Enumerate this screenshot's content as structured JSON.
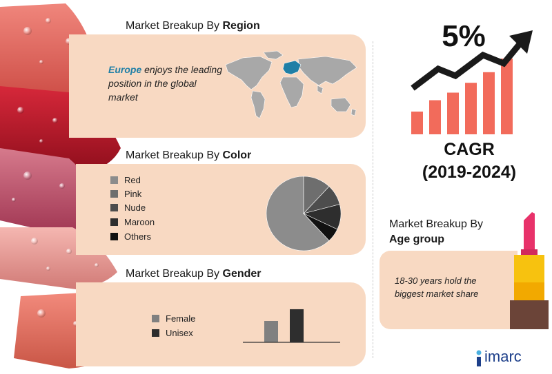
{
  "region": {
    "heading_prefix": "Market Breakup By ",
    "heading_bold": "Region",
    "highlight": "Europe",
    "text": " enjoys the leading position in the global market"
  },
  "color": {
    "heading_prefix": "Market Breakup By ",
    "heading_bold": "Color",
    "legend": [
      {
        "label": "Red",
        "color": "#8c8c8c"
      },
      {
        "label": "Pink",
        "color": "#6e6e6e"
      },
      {
        "label": "Nude",
        "color": "#4d4d4d"
      },
      {
        "label": "Maroon",
        "color": "#2e2e2e"
      },
      {
        "label": "Others",
        "color": "#111111"
      }
    ]
  },
  "gender": {
    "heading_prefix": "Market Breakup By ",
    "heading_bold": "Gender",
    "legend": [
      {
        "label": "Female",
        "color": "#808080"
      },
      {
        "label": "Unisex",
        "color": "#2e2e2e"
      }
    ]
  },
  "cagr": {
    "value": "5%",
    "label": "CAGR",
    "years": "(2019-2024)"
  },
  "age": {
    "heading_line1": "Market Breakup By",
    "heading_line2": "Age group",
    "text": "18-30 years hold the biggest market share"
  },
  "logo": "imarc",
  "colors": {
    "panel": "#f8d9c2",
    "accent_red": "#f26b5b",
    "europe": "#1f7fa6"
  },
  "chart_data": [
    {
      "type": "pie",
      "title": "Market Breakup By Color",
      "categories": [
        "Red",
        "Pink",
        "Nude",
        "Maroon",
        "Others"
      ],
      "values": [
        62,
        12,
        9,
        11,
        6
      ],
      "colors": [
        "#8c8c8c",
        "#6e6e6e",
        "#4d4d4d",
        "#2e2e2e",
        "#111111"
      ]
    },
    {
      "type": "bar",
      "title": "Market Breakup By Gender",
      "categories": [
        "Female",
        "Unisex"
      ],
      "values": [
        40,
        62
      ],
      "colors": [
        "#808080",
        "#2e2e2e"
      ],
      "ylim": [
        0,
        80
      ]
    },
    {
      "type": "bar",
      "title": "CAGR",
      "categories": [
        "1",
        "2",
        "3",
        "4",
        "5",
        "6"
      ],
      "values": [
        30,
        45,
        55,
        68,
        82,
        100
      ],
      "colors": [
        "#f26b5b"
      ],
      "ylim": [
        0,
        100
      ]
    }
  ]
}
